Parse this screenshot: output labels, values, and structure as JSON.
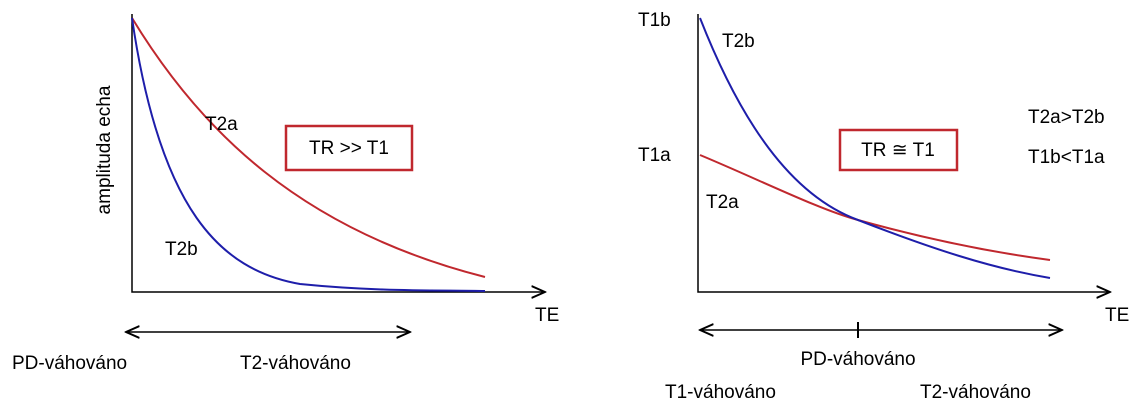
{
  "left": {
    "y_label": "amplituda echa",
    "x_label": "TE",
    "curve_a": "T2a",
    "curve_b": "T2b",
    "box": "TR >> T1",
    "arrow_left": "PD-váhováno",
    "arrow_right": "T2-váhováno"
  },
  "right": {
    "x_label": "TE",
    "y_top": "T1b",
    "y_mid": "T1a",
    "curve_b": "T2b",
    "curve_a": "T2a",
    "box": "TR ≅ T1",
    "relation_1": "T2a>T2b",
    "relation_2": "T1b<T1a",
    "arrow_center": "PD-váhováno",
    "arrow_left": "T1-váhováno",
    "arrow_right": "T2-váhováno"
  }
}
